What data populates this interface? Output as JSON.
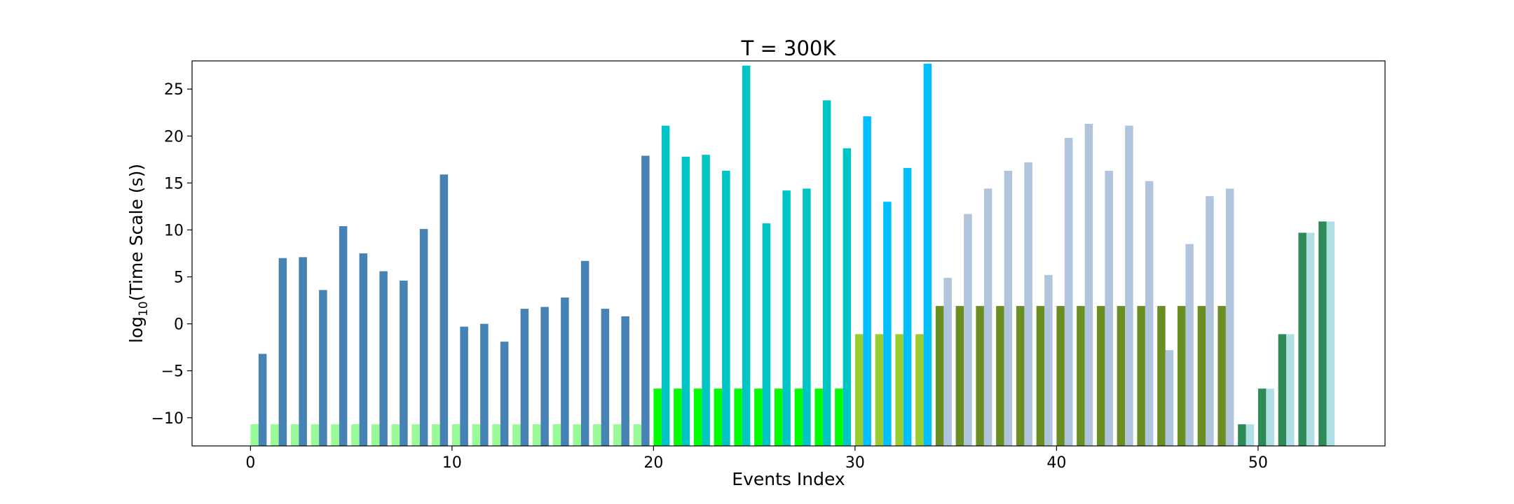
{
  "chart_data": {
    "type": "bar",
    "title": "T = 300K",
    "xlabel": "Events Index",
    "ylabel_main": "log",
    "ylabel_sub": "10",
    "ylabel_rest": "(Time Scale (s))",
    "xlim": [
      -2.9,
      56.3
    ],
    "ylim": [
      -13,
      28
    ],
    "xticks": [
      0,
      10,
      20,
      30,
      40,
      50
    ],
    "yticks": [
      -10,
      -5,
      0,
      5,
      10,
      15,
      20,
      25
    ],
    "grid": false,
    "legend": "none",
    "bar_width": 0.4,
    "series": [
      {
        "values": [
          -10.7,
          -10.7,
          -10.7,
          -10.7,
          -10.7,
          -10.7,
          -10.7,
          -10.7,
          -10.7,
          -10.7,
          -10.7,
          -10.7,
          -10.7,
          -10.7,
          -10.7,
          -10.7,
          -10.7,
          -10.7,
          -10.7,
          -10.7,
          -6.9,
          -6.9,
          -6.9,
          -6.9,
          -6.9,
          -6.9,
          -6.9,
          -6.9,
          -6.9,
          -6.9,
          -1.1,
          -1.1,
          -1.1,
          -1.1,
          1.9,
          1.9,
          1.9,
          1.9,
          1.9,
          1.9,
          1.9,
          1.9,
          1.9,
          1.9,
          1.9,
          1.9,
          1.9,
          1.9,
          1.9,
          -10.7,
          -6.9,
          -1.1,
          9.7,
          10.9
        ],
        "colors": [
          "#98fb98",
          "#98fb98",
          "#98fb98",
          "#98fb98",
          "#98fb98",
          "#98fb98",
          "#98fb98",
          "#98fb98",
          "#98fb98",
          "#98fb98",
          "#98fb98",
          "#98fb98",
          "#98fb98",
          "#98fb98",
          "#98fb98",
          "#98fb98",
          "#98fb98",
          "#98fb98",
          "#98fb98",
          "#98fb98",
          "#00ff00",
          "#00ff00",
          "#00ff00",
          "#00ff00",
          "#00ff00",
          "#00ff00",
          "#00ff00",
          "#00ff00",
          "#00ff00",
          "#00ff00",
          "#9acd32",
          "#9acd32",
          "#9acd32",
          "#9acd32",
          "#6b8e23",
          "#6b8e23",
          "#6b8e23",
          "#6b8e23",
          "#6b8e23",
          "#6b8e23",
          "#6b8e23",
          "#6b8e23",
          "#6b8e23",
          "#6b8e23",
          "#6b8e23",
          "#6b8e23",
          "#6b8e23",
          "#6b8e23",
          "#6b8e23",
          "#2e8b57",
          "#2e8b57",
          "#2e8b57",
          "#2e8b57",
          "#2e8b57"
        ]
      },
      {
        "values": [
          -3.2,
          7.0,
          7.1,
          3.6,
          10.4,
          7.5,
          5.6,
          4.6,
          10.1,
          15.9,
          -0.3,
          0.0,
          -1.9,
          1.6,
          1.8,
          2.8,
          6.7,
          1.6,
          0.8,
          17.9,
          21.1,
          17.8,
          18.0,
          16.3,
          27.5,
          10.7,
          14.2,
          14.4,
          23.8,
          18.7,
          22.1,
          13.0,
          16.6,
          27.7,
          4.9,
          11.7,
          14.4,
          16.3,
          17.2,
          5.2,
          19.8,
          21.3,
          16.3,
          21.1,
          15.2,
          -2.8,
          8.5,
          13.6,
          14.4,
          -10.7,
          -6.9,
          -1.1,
          9.7,
          10.9
        ],
        "colors": [
          "#4682b4",
          "#4682b4",
          "#4682b4",
          "#4682b4",
          "#4682b4",
          "#4682b4",
          "#4682b4",
          "#4682b4",
          "#4682b4",
          "#4682b4",
          "#4682b4",
          "#4682b4",
          "#4682b4",
          "#4682b4",
          "#4682b4",
          "#4682b4",
          "#4682b4",
          "#4682b4",
          "#4682b4",
          "#4682b4",
          "#00c5c5",
          "#00c5c5",
          "#00c5c5",
          "#00c5c5",
          "#00c5c5",
          "#00c5c5",
          "#00c5c5",
          "#00c5c5",
          "#00c5c5",
          "#00c5c5",
          "#00bfff",
          "#00bfff",
          "#00bfff",
          "#00bfff",
          "#b0c4de",
          "#b0c4de",
          "#b0c4de",
          "#b0c4de",
          "#b0c4de",
          "#b0c4de",
          "#b0c4de",
          "#b0c4de",
          "#b0c4de",
          "#b0c4de",
          "#b0c4de",
          "#b0c4de",
          "#b0c4de",
          "#b0c4de",
          "#b0c4de",
          "#b0e0e6",
          "#b0e0e6",
          "#b0e0e6",
          "#b0e0e6",
          "#b0e0e6"
        ]
      }
    ]
  }
}
